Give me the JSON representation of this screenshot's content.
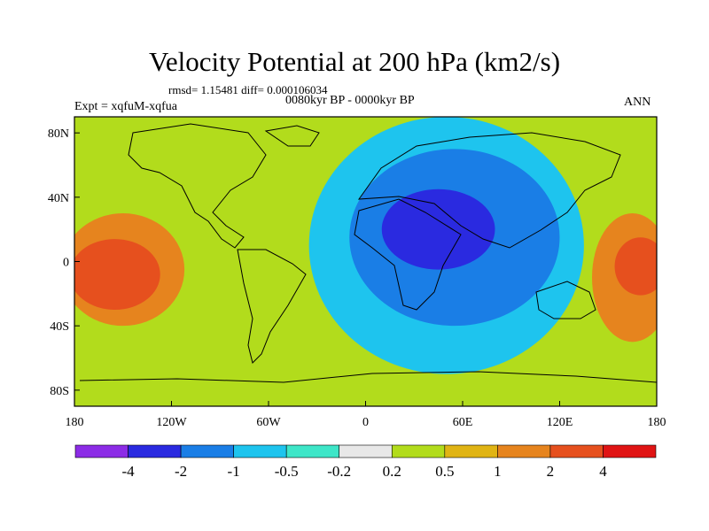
{
  "chart_data": {
    "type": "heatmap",
    "title": "Velocity Potential at 200 hPa (km2/s)",
    "stats_text": "rmsd= 1.15481 diff= 0.000106034",
    "period_text": "0080kyr BP - 0000kyr BP",
    "experiment_text": "Expt = xqfuM-xqfua",
    "season_text": "ANN",
    "x_ticks": [
      {
        "value": -180,
        "label": "180"
      },
      {
        "value": -120,
        "label": "120W"
      },
      {
        "value": -60,
        "label": "60W"
      },
      {
        "value": 0,
        "label": "0"
      },
      {
        "value": 60,
        "label": "60E"
      },
      {
        "value": 120,
        "label": "120E"
      },
      {
        "value": 180,
        "label": "180"
      }
    ],
    "y_ticks": [
      {
        "value": 80,
        "label": "80N"
      },
      {
        "value": 40,
        "label": "40N"
      },
      {
        "value": 0,
        "label": "0"
      },
      {
        "value": -40,
        "label": "40S"
      },
      {
        "value": -80,
        "label": "80S"
      }
    ],
    "xlim": [
      -180,
      180
    ],
    "ylim": [
      -90,
      90
    ],
    "contour_levels": [
      "-4",
      "-2",
      "-1",
      "-0.5",
      "-0.2",
      "0.2",
      "0.5",
      "1",
      "2",
      "4"
    ],
    "color_bins": [
      "#8c2ce6",
      "#2a2ae0",
      "#1a7ee6",
      "#1ec4ee",
      "#3ee6c8",
      "#e8e8e8",
      "#b2dc1c",
      "#e0b414",
      "#e6841e",
      "#e6501e",
      "#e01414"
    ],
    "regions": [
      {
        "name": "pacific-east-orange-core",
        "lon": -150,
        "lat": -5,
        "rx": 38,
        "ry": 35,
        "bin": 8
      },
      {
        "name": "pacific-east-red-core",
        "lon": -155,
        "lat": -8,
        "rx": 28,
        "ry": 22,
        "bin": 9
      },
      {
        "name": "west-pacific-orange",
        "lon": 165,
        "lat": -10,
        "rx": 25,
        "ry": 40,
        "bin": 8
      },
      {
        "name": "west-pacific-red",
        "lon": 170,
        "lat": -3,
        "rx": 16,
        "ry": 18,
        "bin": 9
      },
      {
        "name": "eastern-hemisphere-cyan",
        "lon": 50,
        "lat": 10,
        "rx": 85,
        "ry": 80,
        "bin": 3
      },
      {
        "name": "africa-asia-blue",
        "lon": 55,
        "lat": 15,
        "rx": 65,
        "ry": 55,
        "bin": 2
      },
      {
        "name": "arabia-dark-blue",
        "lon": 45,
        "lat": 20,
        "rx": 35,
        "ry": 25,
        "bin": 1
      }
    ]
  }
}
